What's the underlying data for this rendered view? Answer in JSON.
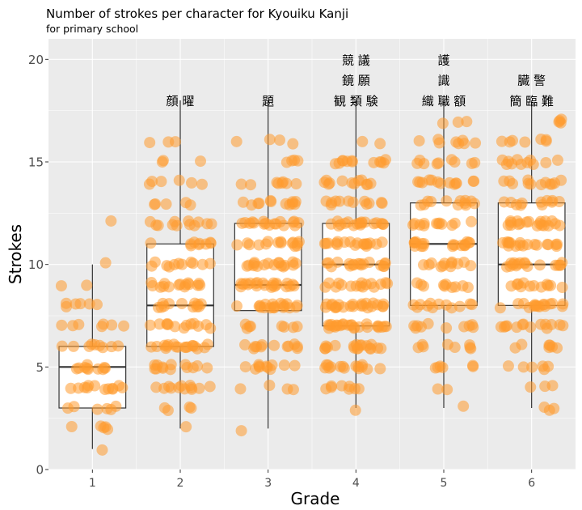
{
  "chart_data": {
    "type": "box",
    "title": "Number of strokes per character for Kyouiku Kanji",
    "subtitle": "for primary school",
    "xlabel": "Grade",
    "ylabel": "Strokes",
    "categories": [
      "1",
      "2",
      "3",
      "4",
      "5",
      "6"
    ],
    "ylim": [
      0,
      21
    ],
    "yticks": [
      0,
      5,
      10,
      15,
      20
    ],
    "ytick_labels": [
      "0",
      "5",
      "10",
      "15",
      "20"
    ],
    "grid": true,
    "colors": {
      "panel": "#ebebeb",
      "grid": "#ffffff",
      "point": "#ff9a2e",
      "box_fill": "#ffffff",
      "box_line": "#333333"
    },
    "boxes": [
      {
        "grade": "1",
        "min": 1,
        "q1": 3,
        "median": 5,
        "q3": 6,
        "max": 10
      },
      {
        "grade": "2",
        "min": 2,
        "q1": 6,
        "median": 8,
        "q3": 11,
        "max": 18
      },
      {
        "grade": "3",
        "min": 2,
        "q1": 7.75,
        "median": 9,
        "q3": 12,
        "max": 18
      },
      {
        "grade": "4",
        "min": 3,
        "q1": 7,
        "median": 10,
        "q3": 12,
        "max": 18
      },
      {
        "grade": "5",
        "min": 3,
        "q1": 8,
        "median": 11,
        "q3": 13,
        "max": 18
      },
      {
        "grade": "6",
        "min": 3,
        "q1": 8,
        "median": 10,
        "q3": 13,
        "max": 18
      }
    ],
    "points": [
      {
        "grade": "1",
        "counts": {
          "1": 1,
          "2": 5,
          "3": 6,
          "4": 12,
          "5": 10,
          "6": 9,
          "7": 7,
          "8": 6,
          "9": 2,
          "10": 1,
          "12": 1
        }
      },
      {
        "grade": "2",
        "counts": {
          "2": 1,
          "3": 4,
          "4": 12,
          "5": 13,
          "6": 18,
          "7": 13,
          "8": 12,
          "9": 15,
          "10": 11,
          "11": 9,
          "12": 12,
          "13": 5,
          "14": 6,
          "15": 3,
          "16": 3
        }
      },
      {
        "grade": "3",
        "counts": {
          "2": 1,
          "4": 4,
          "5": 11,
          "6": 12,
          "7": 8,
          "8": 19,
          "9": 22,
          "10": 17,
          "11": 15,
          "12": 17,
          "13": 12,
          "14": 8,
          "15": 4,
          "16": 4
        }
      },
      {
        "grade": "4",
        "counts": {
          "3": 1,
          "4": 8,
          "5": 15,
          "6": 18,
          "7": 25,
          "8": 23,
          "9": 16,
          "10": 18,
          "11": 18,
          "12": 18,
          "13": 12,
          "14": 12,
          "15": 12,
          "16": 2
        }
      },
      {
        "grade": "5",
        "counts": {
          "3": 1,
          "4": 2,
          "5": 6,
          "6": 8,
          "7": 10,
          "8": 12,
          "9": 10,
          "10": 12,
          "11": 19,
          "12": 12,
          "13": 12,
          "14": 13,
          "15": 9,
          "16": 8,
          "17": 3
        }
      },
      {
        "grade": "6",
        "counts": {
          "3": 3,
          "4": 3,
          "5": 6,
          "6": 7,
          "7": 14,
          "8": 17,
          "9": 12,
          "10": 17,
          "11": 18,
          "12": 19,
          "13": 11,
          "14": 12,
          "15": 11,
          "16": 7,
          "17": 4
        }
      }
    ],
    "annotations": [
      {
        "grade": "2",
        "lines": [
          "顔 曜"
        ]
      },
      {
        "grade": "3",
        "lines": [
          "題"
        ]
      },
      {
        "grade": "4",
        "lines": [
          "競 議",
          "鏡 願",
          "観 類 験"
        ]
      },
      {
        "grade": "5",
        "lines": [
          "護",
          "識",
          "織 職 額"
        ]
      },
      {
        "grade": "6",
        "lines": [
          "臓 警",
          "簡 臨 難"
        ]
      }
    ]
  }
}
